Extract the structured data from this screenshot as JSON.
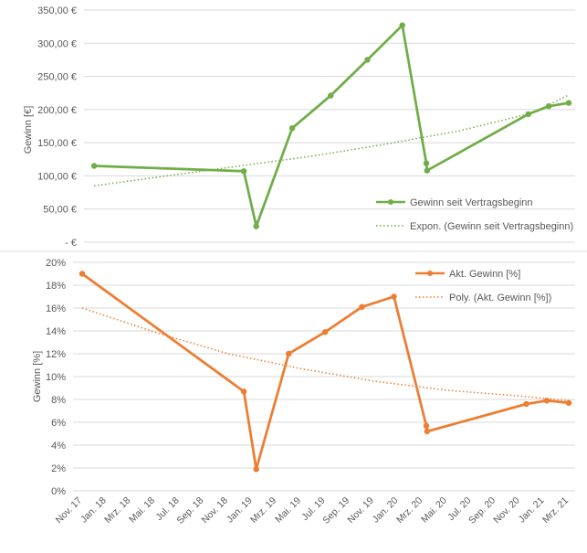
{
  "colors": {
    "top_series": "#70AD47",
    "bottom_series": "#ED7D31",
    "grid": "#D9D9D9",
    "axis_text": "#595959",
    "divider": "#D9D9D9"
  },
  "chart_data": [
    {
      "type": "line",
      "ylabel": "Gewinn [€]",
      "xlabel": "",
      "ylim": [
        0,
        350
      ],
      "yticks": [
        0,
        50,
        100,
        150,
        200,
        250,
        300,
        350
      ],
      "ytick_labels": [
        "- €",
        "50,00 €",
        "100,00 €",
        "150,00 €",
        "200,00 €",
        "250,00 €",
        "300,00 €",
        "350,00 €"
      ],
      "xlim": [
        "2017-11",
        "2021-03"
      ],
      "grid": "horizontal",
      "legend_position": "bottom-right",
      "series": [
        {
          "name": "Gewinn seit Vertragsbeginn",
          "color": "#70AD47",
          "style": "line-markers",
          "points": [
            {
              "x": "2017-12-01",
              "y": 115
            },
            {
              "x": "2018-12-10",
              "y": 107
            },
            {
              "x": "2019-01-10",
              "y": 24
            },
            {
              "x": "2019-04-10",
              "y": 172
            },
            {
              "x": "2019-07-15",
              "y": 221
            },
            {
              "x": "2019-10-15",
              "y": 275
            },
            {
              "x": "2020-01-10",
              "y": 327
            },
            {
              "x": "2020-03-10",
              "y": 119
            },
            {
              "x": "2020-03-12",
              "y": 108
            },
            {
              "x": "2020-11-20",
              "y": 193
            },
            {
              "x": "2021-01-10",
              "y": 205
            },
            {
              "x": "2021-03-01",
              "y": 210
            }
          ]
        },
        {
          "name": "Expon. (Gewinn seit Vertragsbeginn)",
          "color": "#70AD47",
          "style": "dotted-trend",
          "points": [
            {
              "x": "2017-12-01",
              "y": 85
            },
            {
              "x": "2018-06-01",
              "y": 100
            },
            {
              "x": "2018-12-01",
              "y": 115
            },
            {
              "x": "2019-06-01",
              "y": 130
            },
            {
              "x": "2019-12-01",
              "y": 148
            },
            {
              "x": "2020-06-01",
              "y": 168
            },
            {
              "x": "2020-12-01",
              "y": 195
            },
            {
              "x": "2021-03-01",
              "y": 222
            }
          ]
        }
      ]
    },
    {
      "type": "line",
      "ylabel": "Gewinn [%]",
      "xlabel": "",
      "ylim": [
        0,
        20
      ],
      "yticks": [
        0,
        2,
        4,
        6,
        8,
        10,
        12,
        14,
        16,
        18,
        20
      ],
      "ytick_labels": [
        "0%",
        "2%",
        "4%",
        "6%",
        "8%",
        "10%",
        "12%",
        "14%",
        "16%",
        "18%",
        "20%"
      ],
      "xlim": [
        "2017-11",
        "2021-03"
      ],
      "xtick_labels": [
        "Nov. 17",
        "Jan. 18",
        "Mrz. 18",
        "Mai. 18",
        "Jul. 18",
        "Sep. 18",
        "Nov. 18",
        "Jan. 19",
        "Mrz. 19",
        "Mai. 19",
        "Jul. 19",
        "Sep. 19",
        "Nov. 19",
        "Jan. 20",
        "Mrz. 20",
        "Mai. 20",
        "Jul. 20",
        "Sep. 20",
        "Nov. 20",
        "Jan. 21",
        "Mrz. 21"
      ],
      "grid": "horizontal",
      "legend_position": "top-right",
      "series": [
        {
          "name": "Akt. Gewinn [%]",
          "color": "#ED7D31",
          "style": "line-markers",
          "points": [
            {
              "x": "2017-11-01",
              "y": 19.0
            },
            {
              "x": "2018-12-10",
              "y": 8.7
            },
            {
              "x": "2019-01-10",
              "y": 1.9
            },
            {
              "x": "2019-04-01",
              "y": 12.0
            },
            {
              "x": "2019-07-01",
              "y": 13.9
            },
            {
              "x": "2019-10-01",
              "y": 16.1
            },
            {
              "x": "2019-12-20",
              "y": 17.0
            },
            {
              "x": "2020-03-10",
              "y": 5.7
            },
            {
              "x": "2020-03-12",
              "y": 5.2
            },
            {
              "x": "2020-11-15",
              "y": 7.6
            },
            {
              "x": "2021-01-05",
              "y": 7.9
            },
            {
              "x": "2021-03-01",
              "y": 7.7
            }
          ]
        },
        {
          "name": "Poly. (Akt. Gewinn [%])",
          "color": "#ED7D31",
          "style": "dotted-trend",
          "points": [
            {
              "x": "2017-11-01",
              "y": 16.0
            },
            {
              "x": "2018-05-01",
              "y": 13.9
            },
            {
              "x": "2018-11-01",
              "y": 12.0
            },
            {
              "x": "2019-05-01",
              "y": 10.7
            },
            {
              "x": "2019-11-01",
              "y": 9.6
            },
            {
              "x": "2020-05-01",
              "y": 8.8
            },
            {
              "x": "2020-11-01",
              "y": 8.3
            },
            {
              "x": "2021-03-01",
              "y": 7.9
            }
          ]
        }
      ]
    }
  ]
}
